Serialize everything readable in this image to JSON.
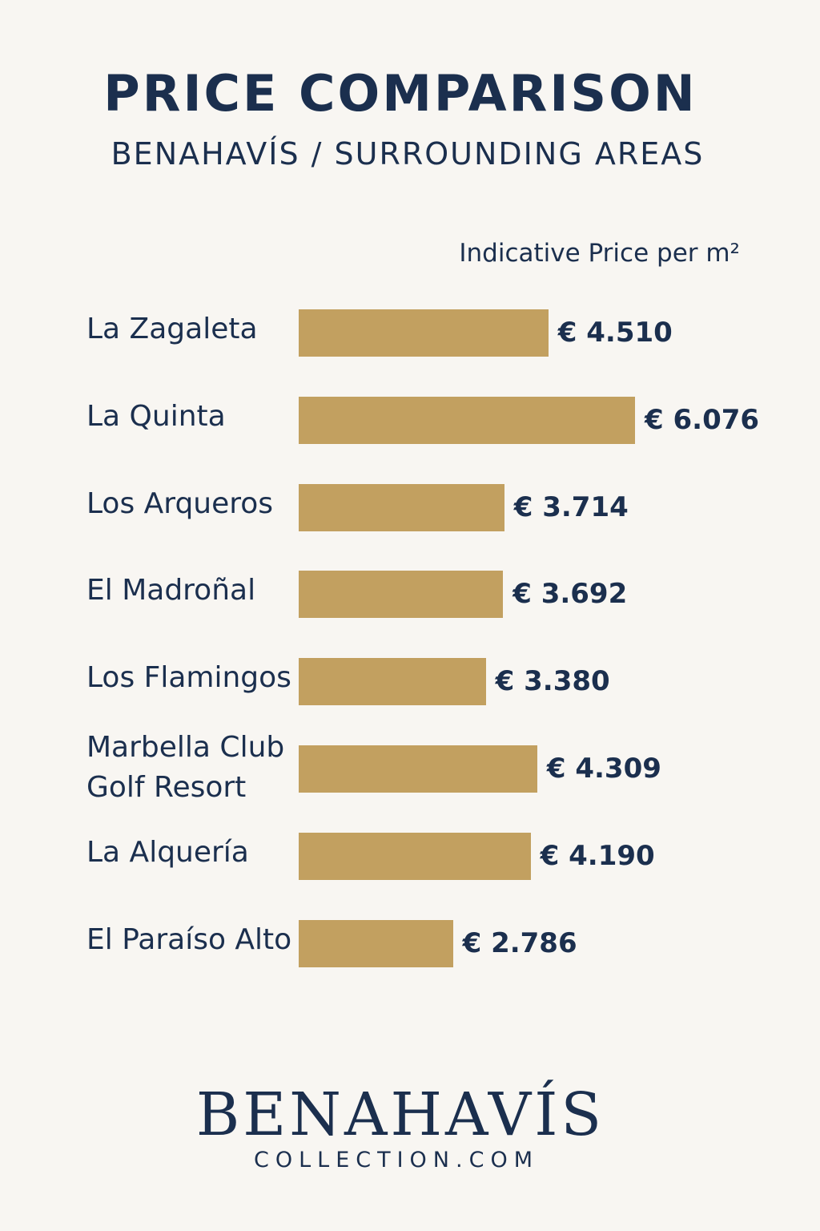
{
  "chart_data": {
    "type": "bar",
    "orientation": "horizontal",
    "title": "PRICE COMPARISON",
    "subtitle": "BENAHAVÍS / SURROUNDING AREAS",
    "value_label": "Indicative Price per m²",
    "categories": [
      "La Zagaleta",
      "La Quinta",
      "Los Arqueros",
      "El Madroñal",
      "Los Flamingos",
      "Marbella Club\nGolf Resort",
      "La Alquería",
      "El Paraíso Alto"
    ],
    "values": [
      4510,
      6076,
      3714,
      3692,
      3380,
      4309,
      4190,
      2786
    ],
    "value_labels": [
      "€ 4.510",
      "€ 6.076",
      "€ 3.714",
      "€ 3.692",
      "€ 3.380",
      "€ 4.309",
      "€ 4.190",
      "€ 2.786"
    ],
    "bar_color": "#c2a060",
    "text_color": "#1b2f4e",
    "grid": false
  },
  "branding": {
    "logo": "BENAHAVÍS",
    "website": "COLLECTION.COM"
  }
}
